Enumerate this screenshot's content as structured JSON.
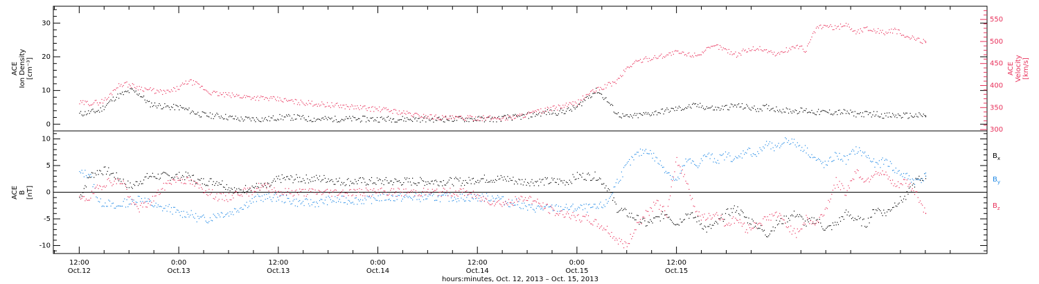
{
  "chart_data": [
    {
      "type": "scatter",
      "ylabel_lines": [
        "ACE",
        "Ion Density",
        "[cm⁻³]"
      ],
      "y2label_lines": [
        "ACE",
        "Velocity",
        "[km/s]"
      ],
      "ylim": [
        -2,
        35
      ],
      "yticks": [
        0,
        10,
        20,
        30
      ],
      "y2lim": [
        297,
        580
      ],
      "y2ticks": [
        300,
        350,
        400,
        450,
        500,
        550
      ],
      "colors": {
        "density": "#000000",
        "velocity": "#e8305a"
      },
      "series": [
        {
          "axis": "left",
          "color": "#000000",
          "x": [
            0.0,
            0.05,
            0.1,
            0.14,
            0.18,
            0.22,
            0.26,
            0.3,
            0.35,
            0.4,
            0.45,
            0.5,
            0.55,
            0.6,
            0.65,
            0.7,
            0.75,
            0.8,
            0.85,
            0.9,
            0.95,
            1.0,
            1.05,
            1.1,
            1.15,
            1.2,
            1.25,
            1.3,
            1.35,
            1.4,
            1.45,
            1.5,
            1.55,
            1.6,
            1.65,
            1.7,
            1.75,
            1.8,
            1.85,
            1.9,
            1.95,
            2.0,
            2.05,
            2.1,
            2.15,
            2.2,
            2.25,
            2.3,
            2.35,
            2.4,
            2.45,
            2.5,
            2.55,
            2.6,
            2.65,
            2.7,
            2.75,
            2.8,
            2.85,
            2.9,
            2.95,
            3.0,
            3.05,
            3.1,
            3.15,
            3.2,
            3.25,
            3.3,
            3.35,
            3.4,
            3.45,
            3.5,
            3.55,
            3.6,
            3.65,
            3.7,
            3.75,
            3.8,
            3.85,
            3.9,
            3.95,
            4.0,
            4.05,
            4.1,
            4.15,
            4.2,
            4.25
          ],
          "y": [
            3,
            3.5,
            4,
            6,
            8,
            9,
            10,
            9,
            6,
            5.5,
            5,
            5,
            4,
            3,
            2.5,
            2.5,
            2,
            1.5,
            1.5,
            1.5,
            1.5,
            2,
            2,
            2,
            1.5,
            1.5,
            1.5,
            1.5,
            1.5,
            1.5,
            1.5,
            1.5,
            1.5,
            1.5,
            1.5,
            1.5,
            1.5,
            1.5,
            1.5,
            1.5,
            1.5,
            1.5,
            1.5,
            1.5,
            2,
            2,
            2.5,
            3,
            3.5,
            3.5,
            4,
            5,
            8,
            10,
            7,
            3,
            2,
            2.5,
            3,
            3.5,
            4,
            4.5,
            5,
            5.5,
            5,
            4.5,
            5,
            5.5,
            5,
            4.5,
            5,
            4.5,
            4,
            4,
            4,
            3.5,
            3.5,
            3.5,
            3.5,
            3,
            3,
            3,
            2.5,
            2.5,
            2.5,
            2.5,
            2.5
          ]
        },
        {
          "axis": "right",
          "color": "#e8305a",
          "x": [
            0.0,
            0.05,
            0.1,
            0.14,
            0.18,
            0.22,
            0.26,
            0.3,
            0.35,
            0.4,
            0.45,
            0.5,
            0.55,
            0.6,
            0.65,
            0.7,
            0.75,
            0.8,
            0.85,
            0.9,
            0.95,
            1.0,
            1.05,
            1.1,
            1.15,
            1.2,
            1.25,
            1.3,
            1.35,
            1.4,
            1.45,
            1.5,
            1.55,
            1.6,
            1.65,
            1.7,
            1.75,
            1.8,
            1.85,
            1.9,
            1.95,
            2.0,
            2.05,
            2.1,
            2.15,
            2.2,
            2.25,
            2.3,
            2.35,
            2.4,
            2.45,
            2.5,
            2.55,
            2.6,
            2.65,
            2.7,
            2.75,
            2.8,
            2.85,
            2.9,
            2.95,
            3.0,
            3.05,
            3.1,
            3.15,
            3.2,
            3.25,
            3.3,
            3.35,
            3.4,
            3.45,
            3.5,
            3.55,
            3.6,
            3.65,
            3.7,
            3.75,
            3.8,
            3.85,
            3.9,
            3.95,
            4.0,
            4.05,
            4.1,
            4.15,
            4.2,
            4.25
          ],
          "y": [
            360,
            360,
            362,
            370,
            395,
            405,
            400,
            395,
            390,
            385,
            385,
            395,
            410,
            400,
            385,
            380,
            378,
            376,
            374,
            372,
            370,
            368,
            365,
            362,
            360,
            358,
            356,
            354,
            352,
            350,
            348,
            346,
            344,
            340,
            336,
            332,
            330,
            328,
            326,
            326,
            326,
            326,
            326,
            326,
            326,
            330,
            335,
            340,
            345,
            350,
            355,
            360,
            380,
            390,
            400,
            410,
            440,
            455,
            460,
            465,
            470,
            475,
            470,
            470,
            480,
            490,
            480,
            470,
            480,
            485,
            480,
            470,
            480,
            490,
            480,
            530,
            535,
            530,
            540,
            520,
            530,
            525,
            520,
            525,
            510,
            505,
            500
          ]
        }
      ]
    },
    {
      "type": "scatter",
      "ylabel_lines": [
        "ACE",
        "B",
        "[nT]"
      ],
      "ylim": [
        -11.5,
        11.5
      ],
      "yticks": [
        -10,
        -5,
        0,
        5,
        10
      ],
      "zero_line": true,
      "legend_placement": "right",
      "legend": [
        {
          "label": "B",
          "sub": "x",
          "color": "#000000"
        },
        {
          "label": "B",
          "sub": "y",
          "color": "#1e88e5"
        },
        {
          "label": "B",
          "sub": "z",
          "color": "#e8305a"
        }
      ],
      "series": [
        {
          "legend_sub": "x",
          "color": "#000000",
          "x": [
            0.0,
            0.05,
            0.1,
            0.14,
            0.18,
            0.22,
            0.26,
            0.3,
            0.35,
            0.4,
            0.45,
            0.5,
            0.55,
            0.6,
            0.65,
            0.7,
            0.75,
            0.8,
            0.85,
            0.9,
            0.95,
            1.0,
            1.05,
            1.1,
            1.15,
            1.2,
            1.25,
            1.3,
            1.35,
            1.4,
            1.45,
            1.5,
            1.55,
            1.6,
            1.65,
            1.7,
            1.75,
            1.8,
            1.85,
            1.9,
            1.95,
            2.0,
            2.05,
            2.1,
            2.15,
            2.2,
            2.25,
            2.3,
            2.35,
            2.4,
            2.45,
            2.5,
            2.55,
            2.6,
            2.65,
            2.7,
            2.75,
            2.8,
            2.85,
            2.9,
            2.95,
            3.0,
            3.05,
            3.1,
            3.15,
            3.2,
            3.25,
            3.3,
            3.35,
            3.4,
            3.45,
            3.5,
            3.55,
            3.6,
            3.65,
            3.7,
            3.75,
            3.8,
            3.85,
            3.9,
            3.95,
            4.0,
            4.05,
            4.1,
            4.15,
            4.2,
            4.25
          ],
          "y": [
            -1,
            3,
            4,
            4,
            3,
            2,
            1,
            2,
            3,
            3,
            3,
            3,
            3,
            2,
            2,
            2,
            1,
            0,
            1,
            1,
            1,
            2.5,
            2.5,
            2.5,
            2.5,
            2.5,
            2.5,
            2,
            2,
            2,
            2,
            2,
            2,
            2,
            2,
            2,
            2,
            2,
            2,
            2,
            2,
            2.5,
            2.5,
            2.5,
            2.5,
            2,
            2,
            2,
            2,
            2,
            2,
            3,
            3,
            3,
            1,
            -3,
            -4,
            -5,
            -6,
            -5,
            -4,
            -6,
            -4,
            -5,
            -7,
            -6,
            -4,
            -3,
            -5,
            -6,
            -8,
            -6,
            -5,
            -4,
            -6,
            -5,
            -7,
            -6,
            -4,
            -5,
            -6,
            -3,
            -4,
            -2,
            -1,
            2,
            3
          ]
        },
        {
          "legend_sub": "y",
          "color": "#1e88e5",
          "x": [
            0.0,
            0.05,
            0.1,
            0.14,
            0.18,
            0.22,
            0.26,
            0.3,
            0.35,
            0.4,
            0.45,
            0.5,
            0.55,
            0.6,
            0.65,
            0.7,
            0.75,
            0.8,
            0.85,
            0.9,
            0.95,
            1.0,
            1.05,
            1.1,
            1.15,
            1.2,
            1.25,
            1.3,
            1.35,
            1.4,
            1.45,
            1.5,
            1.55,
            1.6,
            1.65,
            1.7,
            1.75,
            1.8,
            1.85,
            1.9,
            1.95,
            2.0,
            2.05,
            2.1,
            2.15,
            2.2,
            2.25,
            2.3,
            2.35,
            2.4,
            2.45,
            2.5,
            2.55,
            2.6,
            2.65,
            2.7,
            2.75,
            2.8,
            2.85,
            2.9,
            2.95,
            3.0,
            3.05,
            3.1,
            3.15,
            3.2,
            3.25,
            3.3,
            3.35,
            3.4,
            3.45,
            3.5,
            3.55,
            3.6,
            3.65,
            3.7,
            3.75,
            3.8,
            3.85,
            3.9,
            3.95,
            4.0,
            4.05,
            4.1,
            4.15,
            4.2,
            4.25
          ],
          "y": [
            3.5,
            3.5,
            -2,
            -2,
            -3,
            -2,
            -2,
            -1,
            -2,
            -3,
            -3,
            -4,
            -4,
            -5,
            -5,
            -4,
            -4,
            -3,
            -2,
            -1,
            -1,
            -1,
            -1.5,
            -2,
            -2,
            -2,
            -1.5,
            -1.5,
            -1.5,
            -1.5,
            -1.5,
            -1,
            -1,
            -1,
            -1,
            -1,
            -1,
            -1,
            -1,
            -1,
            -1,
            -1,
            -1,
            -1,
            -2,
            -2,
            -3,
            -3,
            -3,
            -3,
            -3,
            -3,
            -3,
            -3,
            -2,
            2,
            5,
            7,
            8,
            6,
            4,
            2,
            6,
            5,
            7,
            6,
            7,
            6,
            8,
            7,
            9,
            8,
            10,
            9,
            8,
            6,
            5,
            7,
            6,
            8,
            7,
            5,
            6,
            4,
            3,
            2,
            3
          ]
        },
        {
          "legend_sub": "z",
          "color": "#e8305a",
          "x": [
            0.0,
            0.05,
            0.1,
            0.14,
            0.18,
            0.22,
            0.26,
            0.3,
            0.35,
            0.4,
            0.45,
            0.5,
            0.55,
            0.6,
            0.65,
            0.7,
            0.75,
            0.8,
            0.85,
            0.9,
            0.95,
            1.0,
            1.05,
            1.1,
            1.15,
            1.2,
            1.25,
            1.3,
            1.35,
            1.4,
            1.45,
            1.5,
            1.55,
            1.6,
            1.65,
            1.7,
            1.75,
            1.8,
            1.85,
            1.9,
            1.95,
            2.0,
            2.05,
            2.1,
            2.15,
            2.2,
            2.25,
            2.3,
            2.35,
            2.4,
            2.45,
            2.5,
            2.55,
            2.6,
            2.65,
            2.7,
            2.75,
            2.8,
            2.85,
            2.9,
            2.95,
            3.0,
            3.05,
            3.1,
            3.15,
            3.2,
            3.25,
            3.3,
            3.35,
            3.4,
            3.45,
            3.5,
            3.55,
            3.6,
            3.65,
            3.7,
            3.75,
            3.8,
            3.85,
            3.9,
            3.95,
            4.0,
            4.05,
            4.1,
            4.15,
            4.2,
            4.25
          ],
          "y": [
            -1.5,
            -1,
            1,
            2,
            2,
            2,
            -2,
            -3,
            -2,
            0,
            2,
            2.5,
            2,
            1,
            0,
            -1,
            -1,
            0,
            0,
            1,
            1,
            0,
            0,
            0,
            0,
            0,
            0,
            0,
            0,
            0,
            0,
            0,
            0,
            0,
            0,
            0,
            0,
            0,
            0,
            0,
            0,
            -1,
            -1.5,
            -2,
            -2,
            -1.5,
            -1,
            -2,
            -3,
            -4,
            -4,
            -5,
            -5,
            -6,
            -7,
            -9,
            -10,
            -6,
            -4,
            -2,
            -4,
            6,
            2,
            -4,
            -5,
            -4,
            -6,
            -5,
            -7,
            -6,
            -5,
            -4,
            -6,
            -8,
            -5,
            -6,
            -3,
            2,
            0,
            4,
            2,
            4,
            3,
            1,
            2,
            0,
            -4
          ]
        }
      ]
    }
  ],
  "x_axis": {
    "xlim": [
      -0.13,
      4.56
    ],
    "ticks": [
      {
        "x": 0.0,
        "time": "12:00",
        "date": "Oct.12"
      },
      {
        "x": 0.5,
        "time": "0:00",
        "date": "Oct.13"
      },
      {
        "x": 1.0,
        "time": "12:00",
        "date": "Oct.13"
      },
      {
        "x": 1.5,
        "time": "0:00",
        "date": "Oct.14"
      },
      {
        "x": 2.0,
        "time": "12:00",
        "date": "Oct.14"
      },
      {
        "x": 2.5,
        "time": "0:00",
        "date": "Oct.15"
      },
      {
        "x": 3.0,
        "time": "12:00",
        "date": "Oct.15"
      }
    ],
    "label": "hours:minutes, Oct. 12, 2013 – Oct. 15, 2013"
  }
}
